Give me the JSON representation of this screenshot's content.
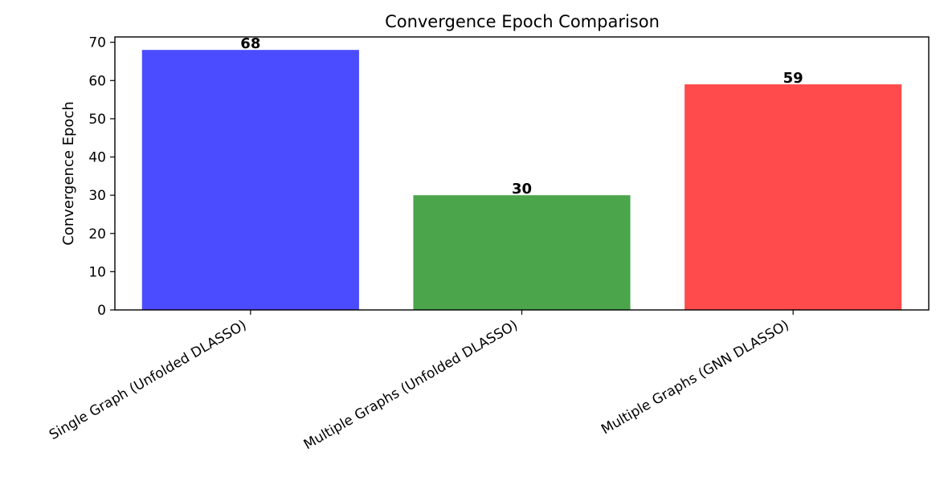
{
  "chart_data": {
    "type": "bar",
    "title": "Convergence Epoch Comparison",
    "xlabel": "",
    "ylabel": "Convergence Epoch",
    "categories": [
      "Single Graph (Unfolded DLASSO)",
      "Multiple Graphs (Unfolded DLASSO)",
      "Multiple Graphs (GNN DLASSO)"
    ],
    "values": [
      68,
      30,
      59
    ],
    "data_labels": [
      "68",
      "30",
      "59"
    ],
    "colors": [
      "#4b4bff",
      "#4ba54b",
      "#ff4b4b"
    ],
    "ylim": [
      0,
      71.4
    ],
    "yticks": [
      0,
      10,
      20,
      30,
      40,
      50,
      60,
      70
    ],
    "ytick_labels": [
      "0",
      "10",
      "20",
      "30",
      "40",
      "50",
      "60",
      "70"
    ],
    "grid": false,
    "legend": "none"
  }
}
